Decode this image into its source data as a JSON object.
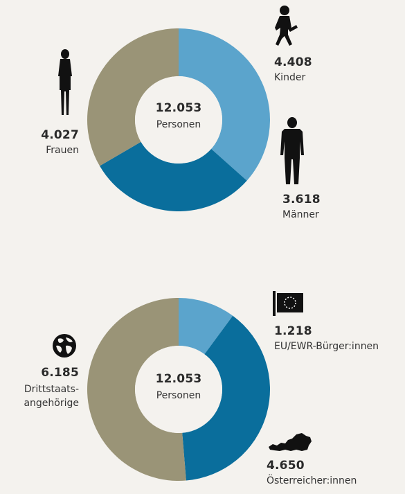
{
  "chart_data": [
    {
      "type": "pie",
      "center_value": "12.053",
      "center_label": "Personen",
      "slices": [
        {
          "label": "Kinder",
          "value": 4408,
          "value_text": "4.408",
          "color": "#5ba4cc"
        },
        {
          "label": "Männer",
          "value": 3618,
          "value_text": "3.618",
          "color": "#0a6e9c"
        },
        {
          "label": "Frauen",
          "value": 4027,
          "value_text": "4.027",
          "color": "#9a9477"
        }
      ]
    },
    {
      "type": "pie",
      "center_value": "12.053",
      "center_label": "Personen",
      "slices": [
        {
          "label": "EU/EWR-Bürger:innen",
          "value": 1218,
          "value_text": "1.218",
          "color": "#5ba4cc"
        },
        {
          "label": "Österreicher:innen",
          "value": 4650,
          "value_text": "4.650",
          "color": "#0a6e9c"
        },
        {
          "label": "Drittstaats-angehörige",
          "value": 6185,
          "value_text": "6.185",
          "color": "#9a9477"
        }
      ]
    }
  ],
  "icons": {
    "child": "running-child-icon",
    "woman": "woman-silhouette-icon",
    "man": "man-silhouette-icon",
    "eu": "eu-flag-icon",
    "globe": "globe-icon",
    "austria": "austria-map-icon"
  }
}
